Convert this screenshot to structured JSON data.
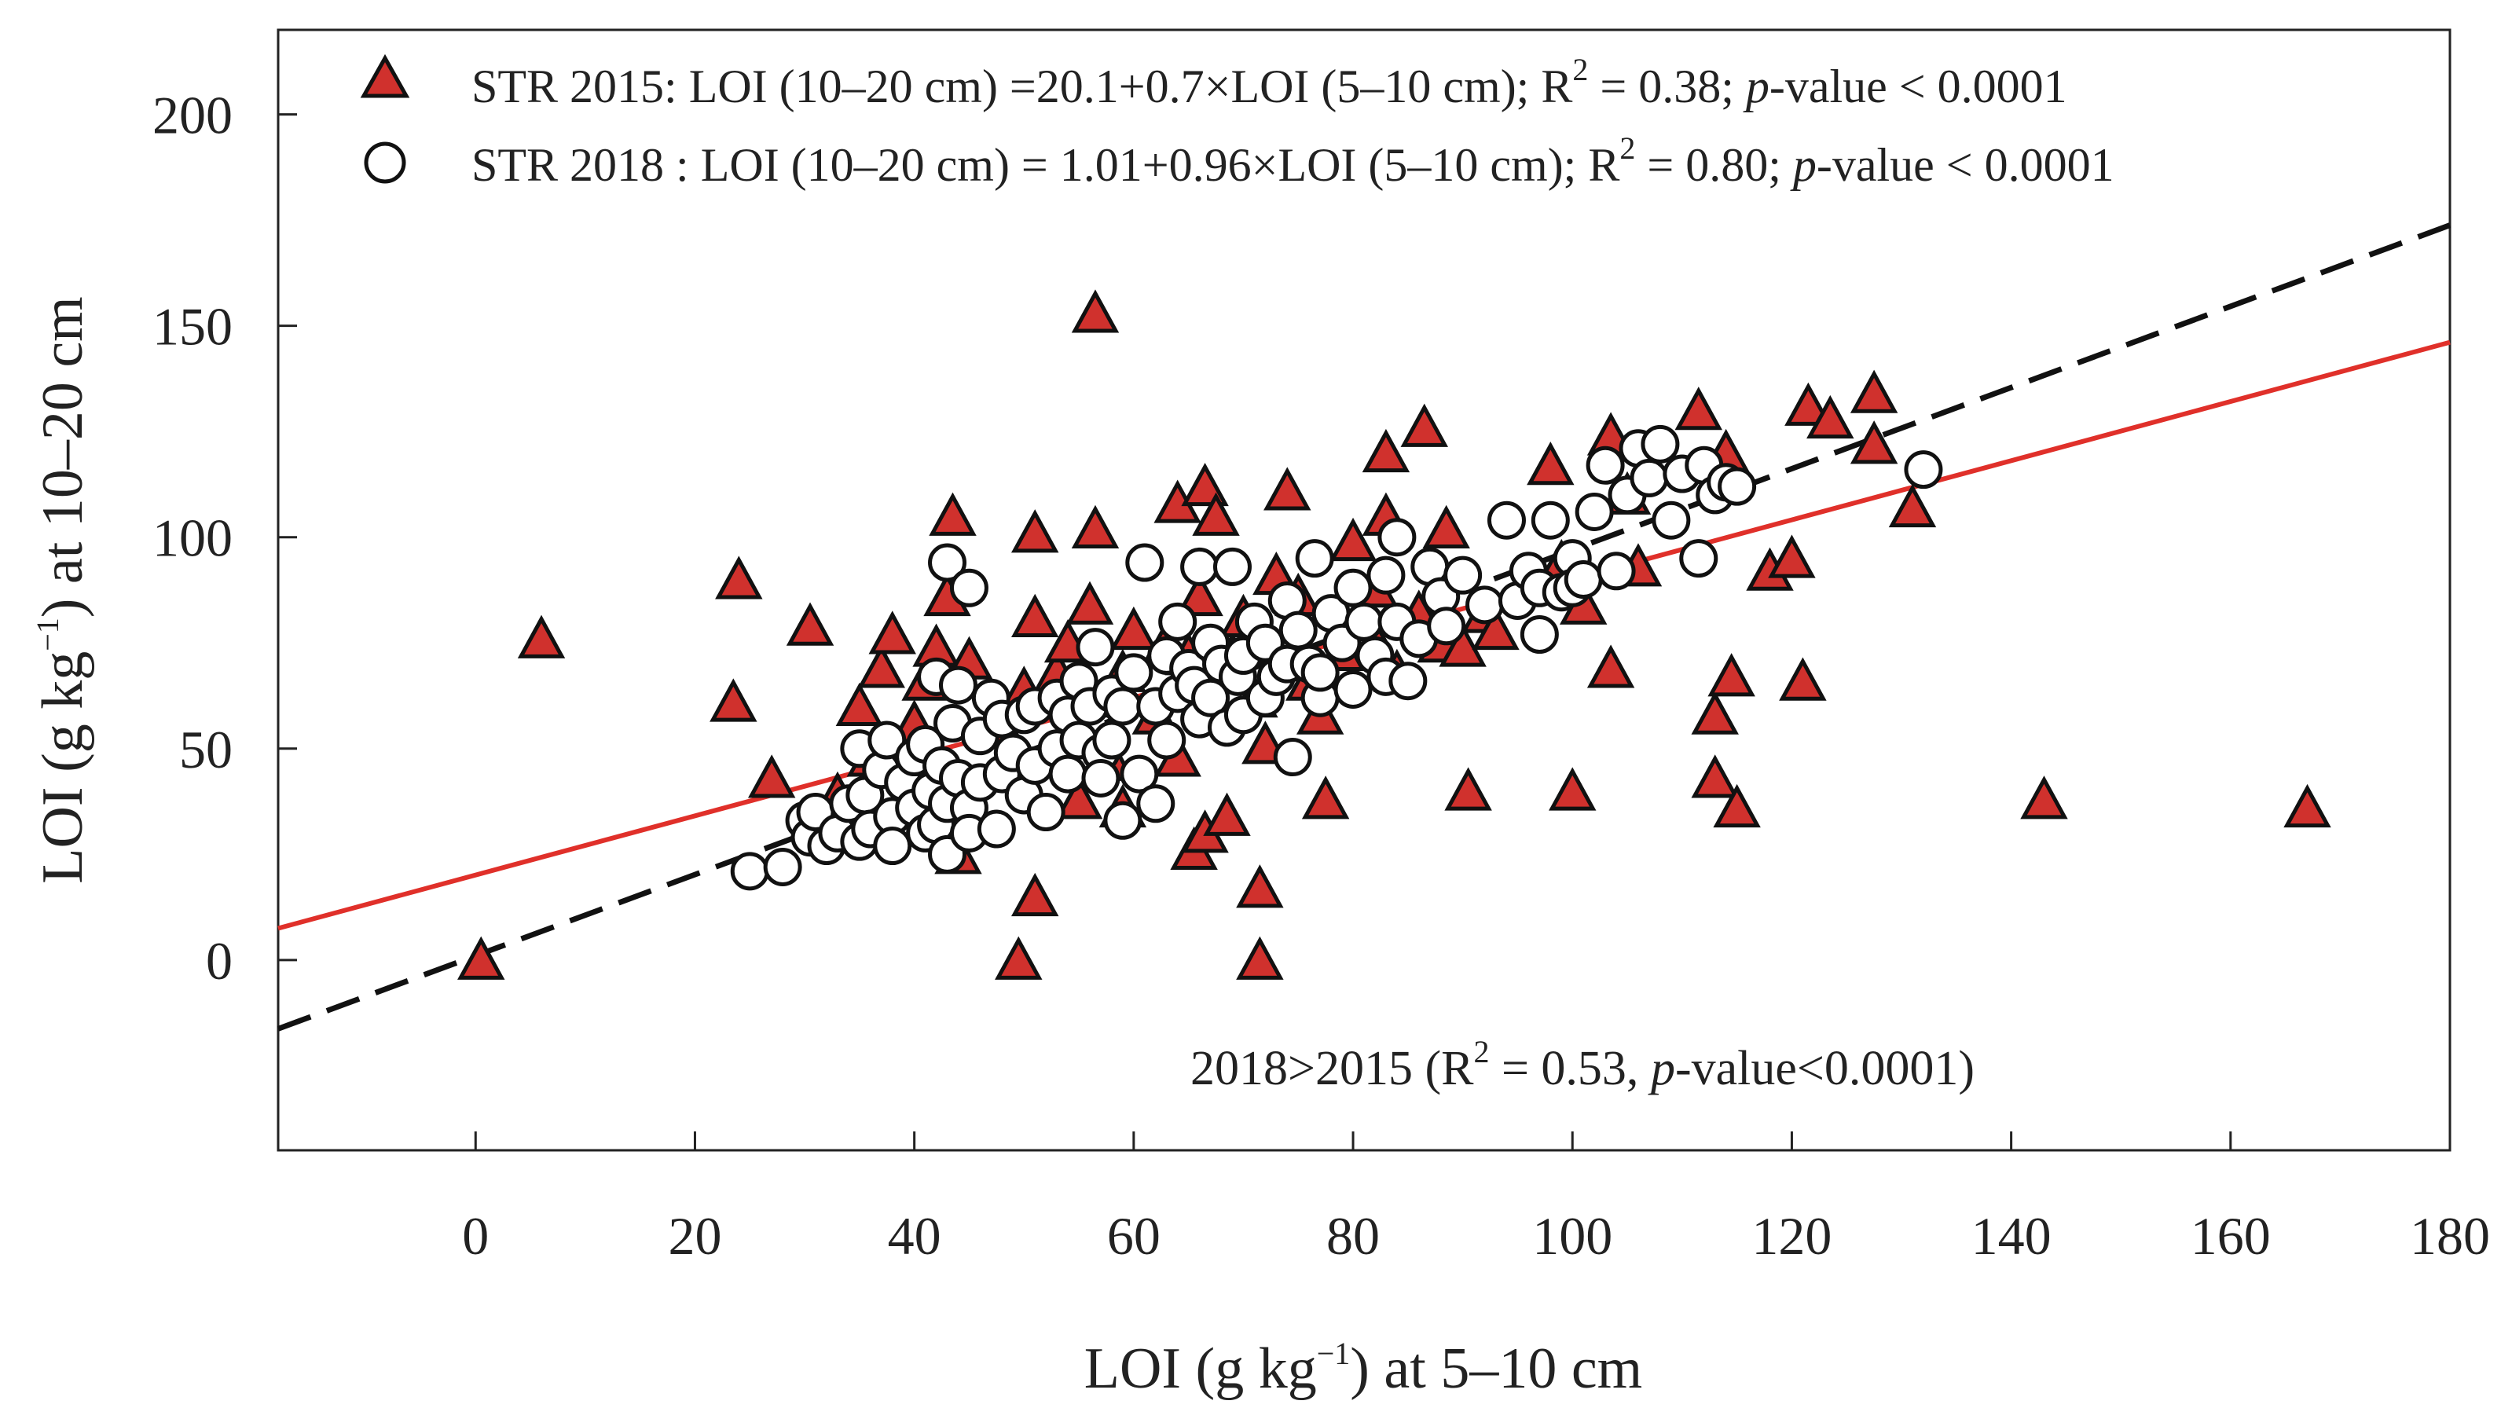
{
  "chart_data": {
    "type": "scatter",
    "title": "",
    "xlabel": {
      "main": "LOI (g kg",
      "sup": "−1",
      "after": ") at 5–10 cm"
    },
    "ylabel": {
      "main": "LOI (g kg",
      "sup": "−1",
      "after": ") at 10–20 cm"
    },
    "xlim": [
      -18,
      180
    ],
    "ylim": [
      -45,
      220
    ],
    "xticks": [
      0,
      20,
      40,
      60,
      80,
      100,
      120,
      140,
      160,
      180
    ],
    "yticks": [
      0,
      50,
      100,
      150,
      200
    ],
    "grid": false,
    "legend_position": "top-left",
    "series": [
      {
        "name": "STR 2015",
        "marker": "triangle",
        "color": "#d0312d",
        "legend": {
          "prefix": "STR 2015: LOI (10–20 cm) =20.1+0.7×LOI (5–10 cm); R",
          "sup": "2",
          "middle": " = 0.38; ",
          "italic": "p",
          "suffix": "-value < 0.0001"
        },
        "fit": {
          "intercept": 20.1,
          "slope": 0.7,
          "color": "#e0302a",
          "style": "solid"
        },
        "points": [
          [
            0.5,
            0
          ],
          [
            6,
            76
          ],
          [
            23.5,
            61
          ],
          [
            24,
            90
          ],
          [
            27,
            43
          ],
          [
            30.5,
            79
          ],
          [
            33,
            39
          ],
          [
            35,
            60
          ],
          [
            36,
            48
          ],
          [
            37,
            69
          ],
          [
            38,
            77
          ],
          [
            40,
            56
          ],
          [
            41,
            66
          ],
          [
            42,
            74
          ],
          [
            43,
            86
          ],
          [
            43.5,
            105
          ],
          [
            44,
            25
          ],
          [
            45,
            71
          ],
          [
            48,
            55
          ],
          [
            49.5,
            0
          ],
          [
            50,
            64
          ],
          [
            51,
            15
          ],
          [
            51,
            81
          ],
          [
            51,
            101
          ],
          [
            53,
            68
          ],
          [
            54,
            75
          ],
          [
            55,
            38
          ],
          [
            55.5,
            62
          ],
          [
            56,
            84
          ],
          [
            56.5,
            102
          ],
          [
            56.5,
            153
          ],
          [
            58,
            47
          ],
          [
            59,
            68
          ],
          [
            59,
            36
          ],
          [
            60,
            78
          ],
          [
            62,
            58
          ],
          [
            63,
            75
          ],
          [
            64,
            48
          ],
          [
            64,
            108
          ],
          [
            65,
            72
          ],
          [
            65.5,
            26
          ],
          [
            66,
            86
          ],
          [
            66.5,
            30
          ],
          [
            66.5,
            112
          ],
          [
            67.5,
            105
          ],
          [
            68.5,
            34
          ],
          [
            69,
            72
          ],
          [
            70,
            81
          ],
          [
            71,
            62
          ],
          [
            71.5,
            17
          ],
          [
            71.5,
            0
          ],
          [
            72,
            51
          ],
          [
            73,
            91
          ],
          [
            74,
            111
          ],
          [
            75,
            86
          ],
          [
            76,
            66
          ],
          [
            77,
            58
          ],
          [
            77.5,
            38
          ],
          [
            79,
            73
          ],
          [
            80,
            99
          ],
          [
            81,
            80
          ],
          [
            82,
            88
          ],
          [
            83,
            120
          ],
          [
            83,
            105
          ],
          [
            84,
            68
          ],
          [
            86,
            82
          ],
          [
            86.5,
            126
          ],
          [
            88,
            75
          ],
          [
            88.5,
            102
          ],
          [
            90,
            74
          ],
          [
            90.5,
            40
          ],
          [
            92,
            82
          ],
          [
            93,
            78
          ],
          [
            98,
            117
          ],
          [
            99,
            94
          ],
          [
            100,
            40
          ],
          [
            101,
            84
          ],
          [
            103.5,
            69
          ],
          [
            103.5,
            124
          ],
          [
            105,
            110
          ],
          [
            106,
            93
          ],
          [
            111.5,
            130
          ],
          [
            113,
            43
          ],
          [
            113,
            58
          ],
          [
            114,
            120
          ],
          [
            114.5,
            67
          ],
          [
            115,
            36
          ],
          [
            118,
            92
          ],
          [
            120,
            95
          ],
          [
            121,
            66
          ],
          [
            121.5,
            131
          ],
          [
            123.5,
            128
          ],
          [
            127.5,
            122
          ],
          [
            127.5,
            134
          ],
          [
            131,
            107
          ],
          [
            143,
            38
          ],
          [
            167,
            36
          ]
        ]
      },
      {
        "name": "STR 2018",
        "marker": "circle",
        "color": "#ffffff",
        "legend": {
          "prefix": "STR 2018 : LOI (10–20 cm) = 1.01+0.96×LOI (5–10 cm); R",
          "sup": "2",
          "middle": " = 0.80; ",
          "italic": "p",
          "suffix": "-value < 0.0001"
        },
        "fit": {
          "intercept": 1.01,
          "slope": 0.96,
          "color": "#111111",
          "style": "dashed"
        },
        "points": [
          [
            25,
            21
          ],
          [
            28,
            22
          ],
          [
            30,
            33
          ],
          [
            30.5,
            29
          ],
          [
            31,
            35
          ],
          [
            32,
            27
          ],
          [
            33,
            30
          ],
          [
            34,
            37
          ],
          [
            35,
            50
          ],
          [
            35,
            28
          ],
          [
            35.5,
            39
          ],
          [
            36,
            31
          ],
          [
            37,
            45
          ],
          [
            37.5,
            52
          ],
          [
            38,
            34
          ],
          [
            38,
            27
          ],
          [
            39,
            42
          ],
          [
            40,
            36
          ],
          [
            40,
            48
          ],
          [
            41,
            51
          ],
          [
            41,
            30
          ],
          [
            41.5,
            40
          ],
          [
            42,
            67
          ],
          [
            42,
            32
          ],
          [
            42.5,
            46
          ],
          [
            43,
            94
          ],
          [
            43,
            37
          ],
          [
            43,
            25
          ],
          [
            43.5,
            56
          ],
          [
            44,
            65
          ],
          [
            44,
            43
          ],
          [
            45,
            88
          ],
          [
            45,
            36
          ],
          [
            45,
            30
          ],
          [
            46,
            53
          ],
          [
            46,
            42
          ],
          [
            47,
            62
          ],
          [
            47.5,
            31
          ],
          [
            48,
            44
          ],
          [
            48,
            57
          ],
          [
            49,
            49
          ],
          [
            50,
            58
          ],
          [
            50,
            39
          ],
          [
            51,
            60
          ],
          [
            51,
            46
          ],
          [
            52,
            35
          ],
          [
            53,
            62
          ],
          [
            53,
            50
          ],
          [
            54,
            58
          ],
          [
            54,
            44
          ],
          [
            55,
            52
          ],
          [
            55,
            66
          ],
          [
            56,
            60
          ],
          [
            56.5,
            74
          ],
          [
            57,
            49
          ],
          [
            57,
            43
          ],
          [
            58,
            63
          ],
          [
            58,
            52
          ],
          [
            59,
            60
          ],
          [
            59,
            33
          ],
          [
            60,
            68
          ],
          [
            60.5,
            44
          ],
          [
            61,
            94
          ],
          [
            62,
            60
          ],
          [
            62,
            37
          ],
          [
            63,
            72
          ],
          [
            63,
            52
          ],
          [
            64,
            80
          ],
          [
            64,
            63
          ],
          [
            65,
            69
          ],
          [
            65.5,
            65
          ],
          [
            66,
            93
          ],
          [
            66,
            57
          ],
          [
            67,
            62
          ],
          [
            67,
            75
          ],
          [
            68,
            70
          ],
          [
            68.5,
            55
          ],
          [
            69,
            93
          ],
          [
            69.5,
            67
          ],
          [
            70,
            72
          ],
          [
            70,
            58
          ],
          [
            71,
            80
          ],
          [
            72,
            62
          ],
          [
            72,
            75
          ],
          [
            73,
            67
          ],
          [
            74,
            85
          ],
          [
            74,
            70
          ],
          [
            74.5,
            48
          ],
          [
            75,
            78
          ],
          [
            76,
            70
          ],
          [
            76.5,
            95
          ],
          [
            77,
            62
          ],
          [
            77,
            68
          ],
          [
            78,
            82
          ],
          [
            79,
            75
          ],
          [
            80,
            88
          ],
          [
            80,
            64
          ],
          [
            81,
            80
          ],
          [
            82,
            72
          ],
          [
            83,
            91
          ],
          [
            83,
            67
          ],
          [
            84,
            100
          ],
          [
            84,
            80
          ],
          [
            85,
            66
          ],
          [
            86,
            76
          ],
          [
            87,
            93
          ],
          [
            88,
            86
          ],
          [
            88.5,
            79
          ],
          [
            90,
            91
          ],
          [
            92,
            84
          ],
          [
            94,
            104
          ],
          [
            95,
            85
          ],
          [
            96,
            92
          ],
          [
            97,
            77
          ],
          [
            97,
            88
          ],
          [
            98,
            104
          ],
          [
            99,
            87
          ],
          [
            100,
            95
          ],
          [
            100,
            88
          ],
          [
            101,
            90
          ],
          [
            102,
            106
          ],
          [
            103,
            117
          ],
          [
            104,
            92
          ],
          [
            105,
            110
          ],
          [
            106,
            121
          ],
          [
            107,
            114
          ],
          [
            108,
            122
          ],
          [
            109,
            104
          ],
          [
            110,
            115
          ],
          [
            111.5,
            95
          ],
          [
            112,
            117
          ],
          [
            113,
            110
          ],
          [
            114,
            113
          ],
          [
            115,
            112
          ],
          [
            132,
            116
          ]
        ]
      }
    ],
    "annotation": {
      "prefix": "2018>2015 (R",
      "sup": "2",
      "middle": " = 0.53, ",
      "italic": "p",
      "suffix": "-value<0.0001)"
    }
  }
}
